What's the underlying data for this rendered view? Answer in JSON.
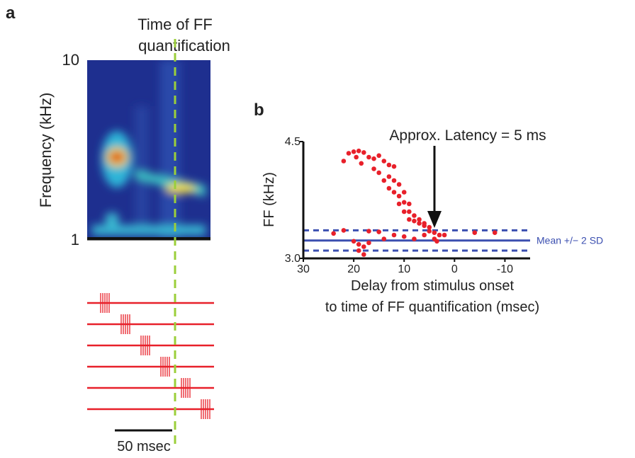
{
  "chart_data": [
    {
      "type": "spectrogram",
      "panel": "a",
      "annotation": [
        "Time of FF",
        "quantification"
      ],
      "ylabel": "Frequency (kHz)",
      "yticks": [
        10,
        1
      ],
      "scale_bar": "50 msec"
    },
    {
      "type": "scatter",
      "panel": "b",
      "annotation": "Approx. Latency = 5 ms",
      "ylabel": "FF (kHz)",
      "xlabel": [
        "Delay from stimulus onset",
        "to time of FF quantification (msec)"
      ],
      "xlim": [
        30,
        -15
      ],
      "ylim": [
        3.0,
        4.5
      ],
      "xticks": [
        30,
        20,
        10,
        0,
        -10
      ],
      "yticks": [
        {
          "value": 4.5,
          "label": "4.5"
        },
        {
          "value": 3.0,
          "label": "3.0"
        }
      ],
      "series": [
        {
          "color": "#e8202a",
          "x": [
            22,
            21,
            20,
            19,
            18,
            19.5,
            18.5,
            17,
            16,
            15,
            14,
            16,
            15,
            13,
            12,
            14,
            13,
            12,
            11,
            13,
            12,
            11,
            10,
            11,
            10,
            9,
            10,
            9,
            8,
            9,
            8,
            7,
            7,
            6,
            6,
            5,
            5,
            4,
            3,
            4,
            3.5,
            6,
            24,
            17,
            20,
            19,
            18,
            17,
            19,
            18,
            14,
            12,
            10,
            8,
            2,
            -4,
            -8,
            15,
            22
          ],
          "values": [
            4.25,
            4.35,
            4.37,
            4.38,
            4.36,
            4.3,
            4.22,
            4.3,
            4.28,
            4.32,
            4.25,
            4.15,
            4.1,
            4.2,
            4.18,
            4.0,
            4.05,
            4.0,
            3.95,
            3.9,
            3.85,
            3.8,
            3.85,
            3.7,
            3.72,
            3.7,
            3.6,
            3.6,
            3.55,
            3.5,
            3.48,
            3.5,
            3.45,
            3.45,
            3.42,
            3.4,
            3.35,
            3.33,
            3.3,
            3.25,
            3.22,
            3.3,
            3.32,
            3.35,
            3.22,
            3.18,
            3.15,
            3.2,
            3.1,
            3.05,
            3.25,
            3.3,
            3.28,
            3.25,
            3.3,
            3.33,
            3.33,
            3.34,
            3.36
          ]
        }
      ],
      "reference": {
        "label": "Mean +/− 2 SD",
        "color": "#3b4fb0",
        "mean": 3.23,
        "lower": 3.1,
        "upper": 3.36
      }
    }
  ]
}
